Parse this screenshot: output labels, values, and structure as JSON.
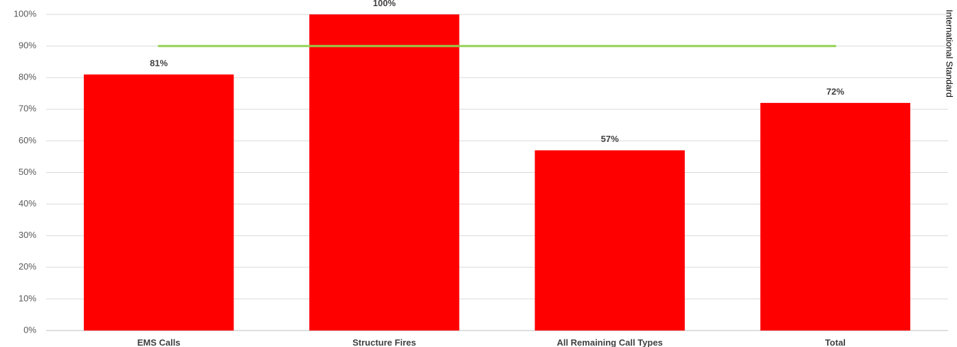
{
  "chart_data": {
    "type": "bar",
    "categories": [
      "EMS Calls",
      "Structure Fires",
      "All Remaining Call Types",
      "Total"
    ],
    "series": [
      {
        "values": [
          81,
          100,
          57,
          72
        ],
        "color": "#ff0000"
      }
    ],
    "data_labels": [
      "81%",
      "100%",
      "57%",
      "72%"
    ],
    "reference_line": {
      "label": "International Standard",
      "value": 90,
      "color": "#92d050"
    },
    "ylim": [
      0,
      100
    ],
    "y_ticks": [
      0,
      10,
      20,
      30,
      40,
      50,
      60,
      70,
      80,
      90,
      100
    ],
    "y_tick_labels": [
      "0%",
      "10%",
      "20%",
      "30%",
      "40%",
      "50%",
      "60%",
      "70%",
      "80%",
      "90%",
      "100%"
    ],
    "grid": true,
    "gridline_color": "#d9d9d9",
    "legend": "none"
  }
}
